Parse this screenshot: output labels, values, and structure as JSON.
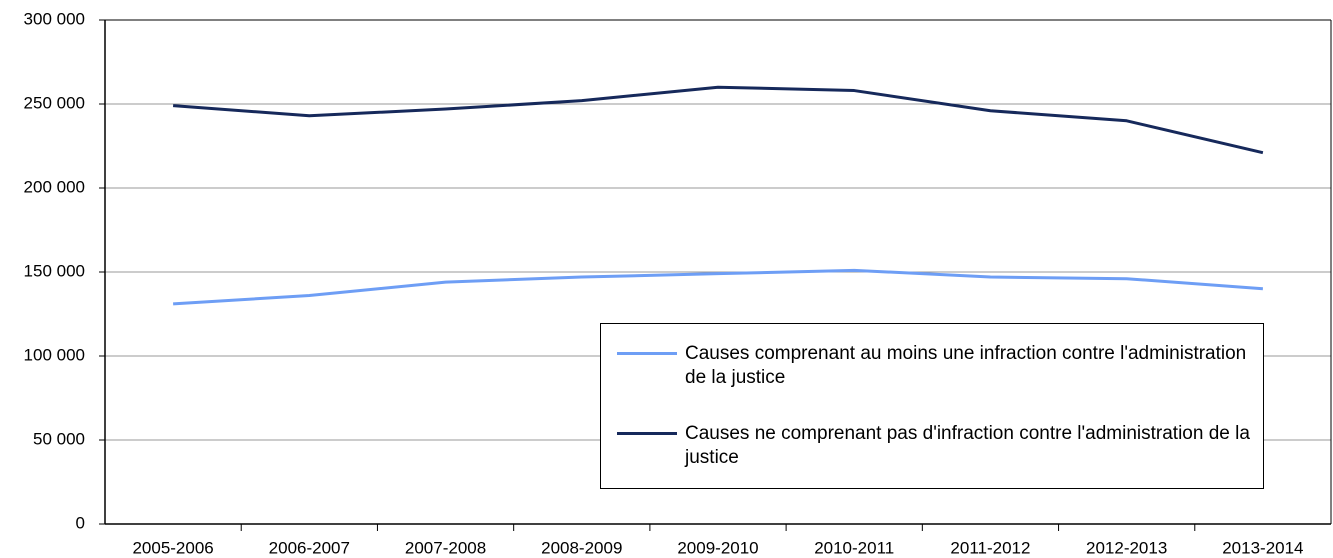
{
  "chart_data": {
    "type": "line",
    "categories": [
      "2005-2006",
      "2006-2007",
      "2007-2008",
      "2008-2009",
      "2009-2010",
      "2010-2011",
      "2011-2012",
      "2012-2013",
      "2013-2014"
    ],
    "series": [
      {
        "name": "Causes comprenant au moins une infraction contre l'administration de la justice",
        "color": "#6e9ef5",
        "values": [
          131000,
          136000,
          144000,
          147000,
          149000,
          151000,
          147000,
          146000,
          140000
        ]
      },
      {
        "name": "Causes ne comprenant pas d'infraction contre l'administration de la justice",
        "color": "#16295b",
        "values": [
          249000,
          243000,
          247000,
          252000,
          260000,
          258000,
          246000,
          240000,
          221000
        ]
      }
    ],
    "ylim": [
      0,
      300000
    ],
    "yticks": [
      0,
      {
        "value": 50000,
        "label": "50 000"
      },
      {
        "value": 100000,
        "label": "100 000"
      },
      {
        "value": 150000,
        "label": "150 000"
      },
      {
        "value": 200000,
        "label": "200 000"
      },
      {
        "value": 250000,
        "label": "250 000"
      },
      {
        "value": 300000,
        "label": "300 000"
      }
    ],
    "grid": true
  }
}
